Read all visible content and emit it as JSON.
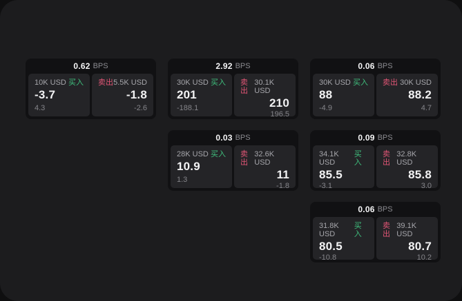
{
  "colors": {
    "background_outer": "#0f0f10",
    "surface": "#1c1c1e",
    "card_background": "#111113",
    "panel_background": "#242427",
    "buy_accent": "#3fbf7d",
    "sell_accent": "#e15575",
    "text_primary": "#f2f2f3",
    "text_muted": "#8b8b90"
  },
  "labels": {
    "bps_unit": "BPS",
    "buy": "买入",
    "sell": "卖出"
  },
  "cards": [
    {
      "bps": "0.62",
      "buy": {
        "size": "10K USD",
        "price": "-3.7",
        "delta": "4.3"
      },
      "sell": {
        "size": "5.5K USD",
        "price": "-1.8",
        "delta": "-2.6"
      }
    },
    {
      "bps": "2.92",
      "buy": {
        "size": "30K USD",
        "price": "201",
        "delta": "-188.1"
      },
      "sell": {
        "size": "30.1K USD",
        "price": "210",
        "delta": "196.5"
      }
    },
    {
      "bps": "0.06",
      "buy": {
        "size": "30K USD",
        "price": "88",
        "delta": "-4.9"
      },
      "sell": {
        "size": "30K USD",
        "price": "88.2",
        "delta": "4.7"
      }
    },
    {
      "bps": "0.03",
      "buy": {
        "size": "28K USD",
        "price": "10.9",
        "delta": "1.3"
      },
      "sell": {
        "size": "32.6K USD",
        "price": "11",
        "delta": "-1.8"
      }
    },
    {
      "bps": "0.09",
      "buy": {
        "size": "34.1K USD",
        "price": "85.5",
        "delta": "-3.1"
      },
      "sell": {
        "size": "32.8K USD",
        "price": "85.8",
        "delta": "3.0"
      }
    },
    {
      "bps": "0.06",
      "buy": {
        "size": "31.8K USD",
        "price": "80.5",
        "delta": "-10.8"
      },
      "sell": {
        "size": "39.1K USD",
        "price": "80.7",
        "delta": "10.2"
      }
    }
  ]
}
